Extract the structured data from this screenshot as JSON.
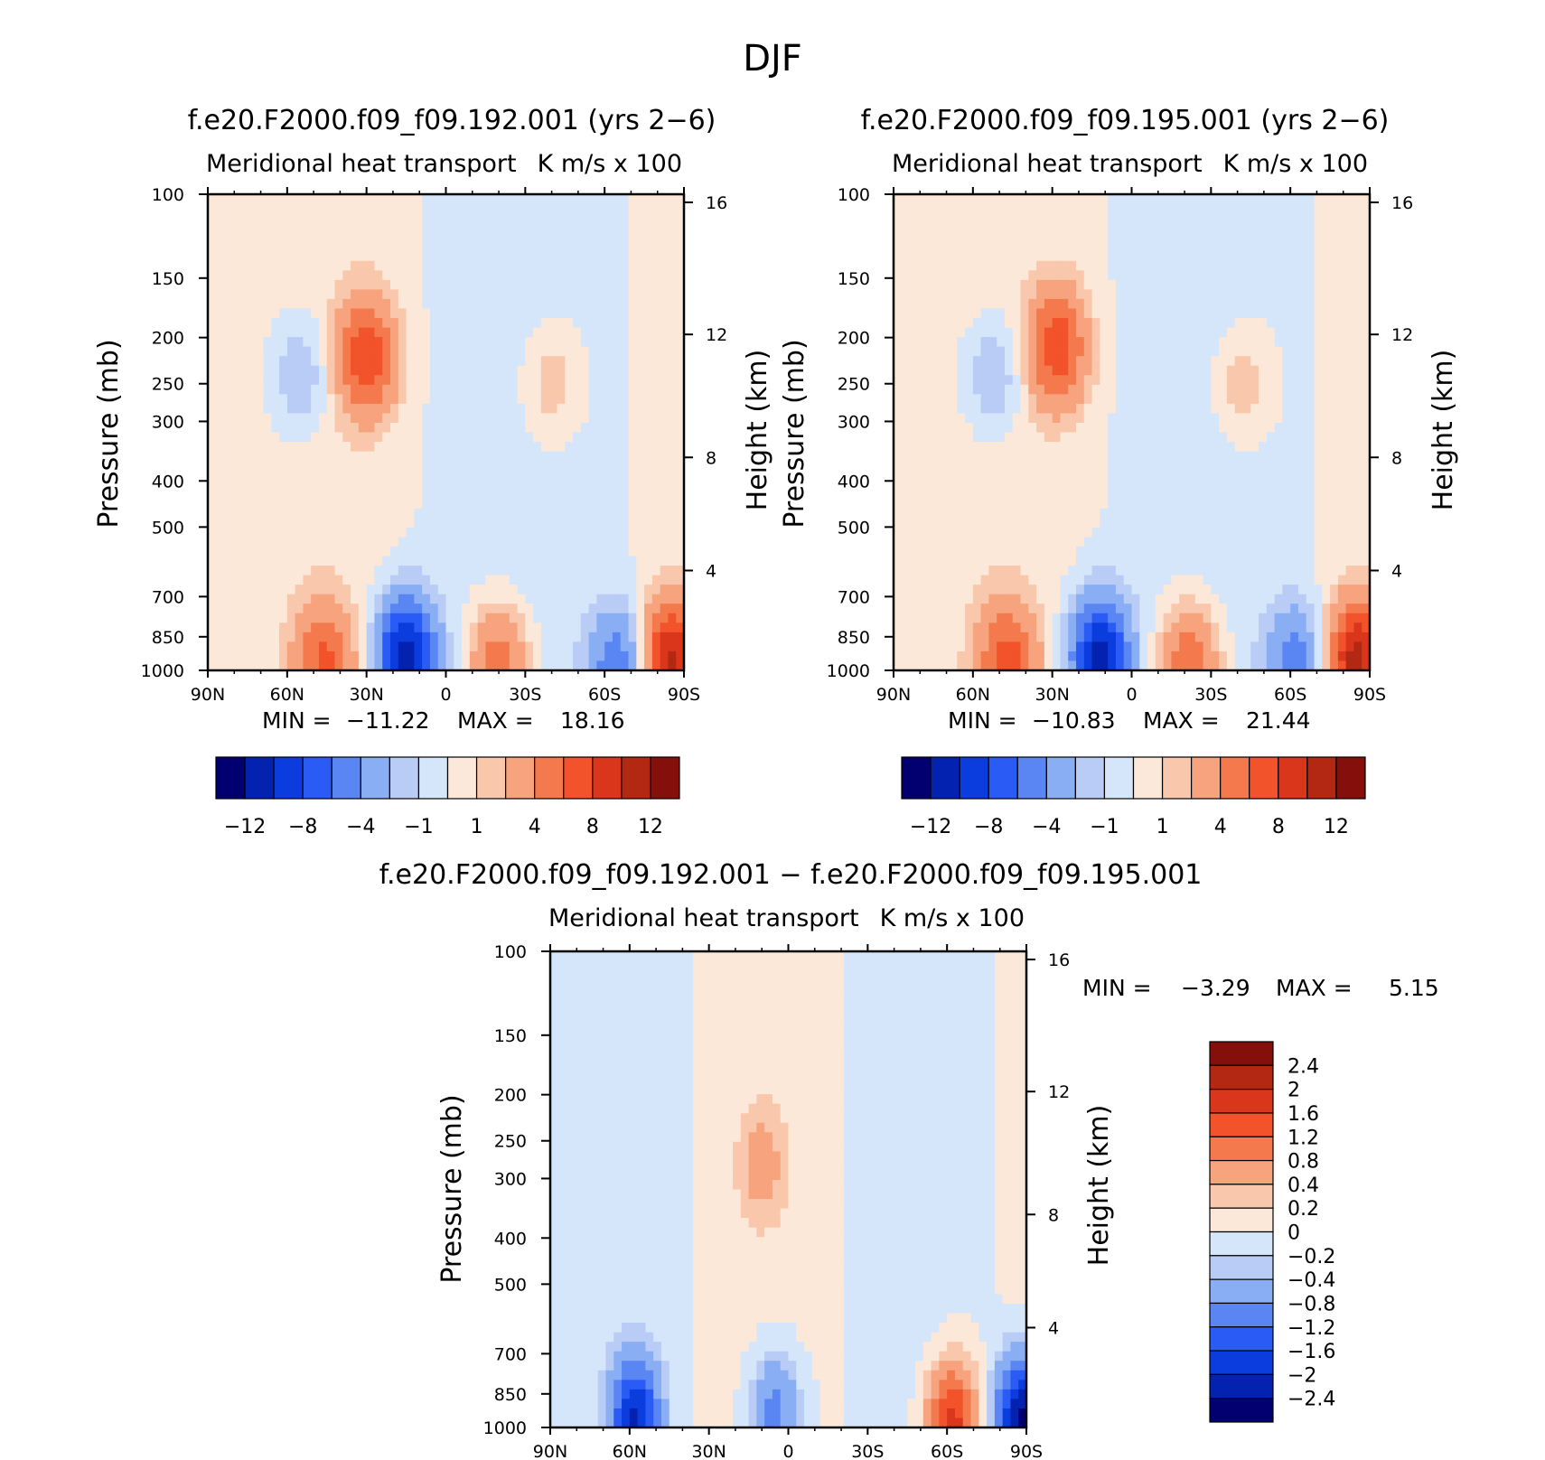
{
  "main_title": "DJF",
  "chart_data": [
    {
      "type": "heatmap",
      "title": "f.e20.F2000.f09_f09.192.001 (yrs 2−6)",
      "subtitle_left": "Meridional heat transport",
      "subtitle_right": "K m/s x 100",
      "ylabel": "Pressure (mb)",
      "ylabel_right": "Height (km)",
      "x_ticks": [
        "90N",
        "60N",
        "30N",
        "0",
        "30S",
        "60S",
        "90S"
      ],
      "y_ticks": [
        "100",
        "150",
        "200",
        "250",
        "300",
        "400",
        "500",
        "700",
        "850",
        "1000"
      ],
      "y_right_ticks": [
        "16",
        "12",
        "8",
        "4"
      ],
      "min_label": "MIN =",
      "min_value": "−11.22",
      "max_label": "MAX =",
      "max_value": "18.16",
      "colorbar_labels": [
        "−12",
        "−8",
        "−4",
        "−1",
        "1",
        "4",
        "8",
        "12"
      ],
      "features": [
        {
          "lat": 15,
          "p": 930,
          "value": -11.2,
          "note": "low-level min"
        },
        {
          "lat": 30,
          "p": 220,
          "value": 7.5,
          "note": "upper max"
        },
        {
          "lat": 46,
          "p": 960,
          "value": 6.0
        },
        {
          "lat": -20,
          "p": 970,
          "value": 5.5
        },
        {
          "lat": -65,
          "p": 980,
          "value": -5.5
        },
        {
          "lat": -85,
          "p": 950,
          "value": 10.0
        },
        {
          "lat": 55,
          "p": 240,
          "value": -2.5
        },
        {
          "lat": -40,
          "p": 250,
          "value": 2.0
        }
      ]
    },
    {
      "type": "heatmap",
      "title": "f.e20.F2000.f09_f09.195.001 (yrs 2−6)",
      "subtitle_left": "Meridional heat transport",
      "subtitle_right": "K m/s x 100",
      "ylabel": "Pressure (mb)",
      "ylabel_right": "Height (km)",
      "x_ticks": [
        "90N",
        "60N",
        "30N",
        "0",
        "30S",
        "60S",
        "90S"
      ],
      "y_ticks": [
        "100",
        "150",
        "200",
        "250",
        "300",
        "400",
        "500",
        "700",
        "850",
        "1000"
      ],
      "y_right_ticks": [
        "16",
        "12",
        "8",
        "4"
      ],
      "min_label": "MIN =",
      "min_value": "−10.83",
      "max_label": "MAX =",
      "max_value": "21.44",
      "colorbar_labels": [
        "−12",
        "−8",
        "−4",
        "−1",
        "1",
        "4",
        "8",
        "12"
      ],
      "features": [
        {
          "lat": 12,
          "p": 940,
          "value": -10.8
        },
        {
          "lat": 28,
          "p": 210,
          "value": 7.2
        },
        {
          "lat": 47,
          "p": 960,
          "value": 6.5
        },
        {
          "lat": -22,
          "p": 970,
          "value": 6.0
        },
        {
          "lat": -62,
          "p": 975,
          "value": -5.0
        },
        {
          "lat": -85,
          "p": 950,
          "value": 10.5
        },
        {
          "lat": 52,
          "p": 240,
          "value": -2.5
        },
        {
          "lat": -42,
          "p": 250,
          "value": 2.0
        }
      ]
    },
    {
      "type": "heatmap",
      "title": "f.e20.F2000.f09_f09.192.001 − f.e20.F2000.f09_f09.195.001",
      "subtitle_left": "Meridional heat transport",
      "subtitle_right": "K m/s x 100",
      "ylabel": "Pressure (mb)",
      "ylabel_right": "Height (km)",
      "x_ticks": [
        "90N",
        "60N",
        "30N",
        "0",
        "30S",
        "60S",
        "90S"
      ],
      "y_ticks": [
        "100",
        "150",
        "200",
        "250",
        "300",
        "400",
        "500",
        "700",
        "850",
        "1000"
      ],
      "y_right_ticks": [
        "16",
        "12",
        "8",
        "4"
      ],
      "min_label": "MIN =",
      "min_value": "−3.29",
      "max_label": "MAX =",
      "max_value": "5.15",
      "colorbar_labels": [
        "2.4",
        "2",
        "1.6",
        "1.2",
        "0.8",
        "0.4",
        "0.2",
        "0",
        "−0.2",
        "−0.4",
        "−0.8",
        "−1.2",
        "−1.6",
        "−2",
        "−2.4"
      ],
      "features": [
        {
          "lat": 58,
          "p": 960,
          "value": -2.0
        },
        {
          "lat": 5,
          "p": 930,
          "value": -1.0
        },
        {
          "lat": -62,
          "p": 985,
          "value": 1.8
        },
        {
          "lat": -88,
          "p": 960,
          "value": -2.5
        },
        {
          "lat": 10,
          "p": 280,
          "value": 0.5
        }
      ]
    }
  ],
  "colors": {
    "palette_main": [
      "#020070",
      "#0422b0",
      "#0a3cde",
      "#2a5cf5",
      "#5a86f3",
      "#8aaef3",
      "#b8ccf6",
      "#d6e6fa",
      "#fce8d8",
      "#f9c7ac",
      "#f6a37e",
      "#f47a4e",
      "#f2532a",
      "#d9361c",
      "#b32812",
      "#850f0a"
    ],
    "palette_diff": [
      "#850f0a",
      "#b32812",
      "#d9361c",
      "#f2532a",
      "#f47a4e",
      "#f6a37e",
      "#f9c7ac",
      "#fce8d8",
      "#d6e6fa",
      "#b8ccf6",
      "#8aaef3",
      "#5a86f3",
      "#2a5cf5",
      "#0a3cde",
      "#0422b0",
      "#020070"
    ]
  }
}
